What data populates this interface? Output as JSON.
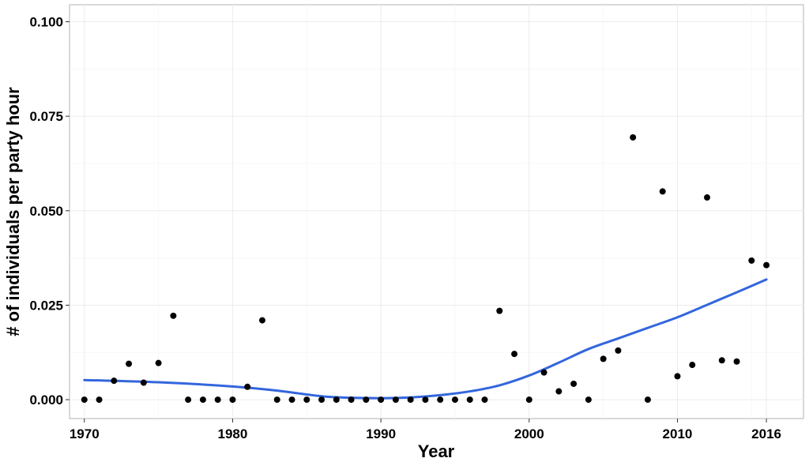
{
  "chart_data": {
    "type": "scatter",
    "title": "",
    "xlabel": "Year",
    "ylabel": "# of individuals per party hour",
    "xlim": [
      1969,
      2018.5
    ],
    "ylim": [
      -0.005,
      0.1045
    ],
    "x_ticks": [
      1970,
      1980,
      1990,
      2000,
      2010,
      2016
    ],
    "x_tick_labels": [
      "1970",
      "1980",
      "1990",
      "2000",
      "2010",
      "2016"
    ],
    "y_ticks": [
      0.0,
      0.025,
      0.05,
      0.075,
      0.1
    ],
    "y_tick_labels": [
      "0.000",
      "0.025",
      "0.050",
      "0.075",
      "0.100"
    ],
    "grid": true,
    "point_color": "#000000",
    "trend_color": "#3366dd",
    "series": [
      {
        "type": "scatter",
        "x": [
          1970,
          1971,
          1972,
          1973,
          1974,
          1975,
          1976,
          1977,
          1978,
          1979,
          1980,
          1981,
          1982,
          1983,
          1984,
          1985,
          1986,
          1987,
          1988,
          1989,
          1990,
          1991,
          1992,
          1993,
          1994,
          1995,
          1996,
          1997,
          1998,
          1999,
          2000,
          2001,
          2002,
          2003,
          2004,
          2005,
          2006,
          2007,
          2008,
          2009,
          2010,
          2011,
          2012,
          2013,
          2014,
          2015,
          2016
        ],
        "y": [
          0.0,
          0.0,
          0.005,
          0.0095,
          0.0045,
          0.0097,
          0.0222,
          0.0,
          0.0,
          0.0,
          0.0,
          0.0034,
          0.021,
          0.0,
          0.0,
          0.0,
          0.0,
          0.0,
          0.0,
          0.0,
          0.0,
          0.0,
          0.0,
          0.0,
          0.0,
          0.0,
          0.0,
          0.0,
          0.0235,
          0.0121,
          0.0,
          0.0072,
          0.0022,
          0.0042,
          0.0,
          0.0108,
          0.013,
          0.0694,
          0.0,
          0.0551,
          0.0062,
          0.0092,
          0.0535,
          0.0104,
          0.0101,
          0.0368,
          0.0356
        ]
      },
      {
        "type": "line",
        "x": [
          1970,
          1975,
          1980,
          1983,
          1986,
          1988,
          1990,
          1992,
          1994,
          1996,
          1998,
          2000,
          2002,
          2004,
          2006,
          2008,
          2010,
          2012,
          2014,
          2016
        ],
        "y": [
          0.0052,
          0.0046,
          0.0035,
          0.0024,
          0.0009,
          0.0005,
          0.0004,
          0.0006,
          0.0012,
          0.0022,
          0.0038,
          0.0064,
          0.0098,
          0.0134,
          0.0162,
          0.019,
          0.0218,
          0.0251,
          0.0284,
          0.0318
        ]
      }
    ]
  }
}
